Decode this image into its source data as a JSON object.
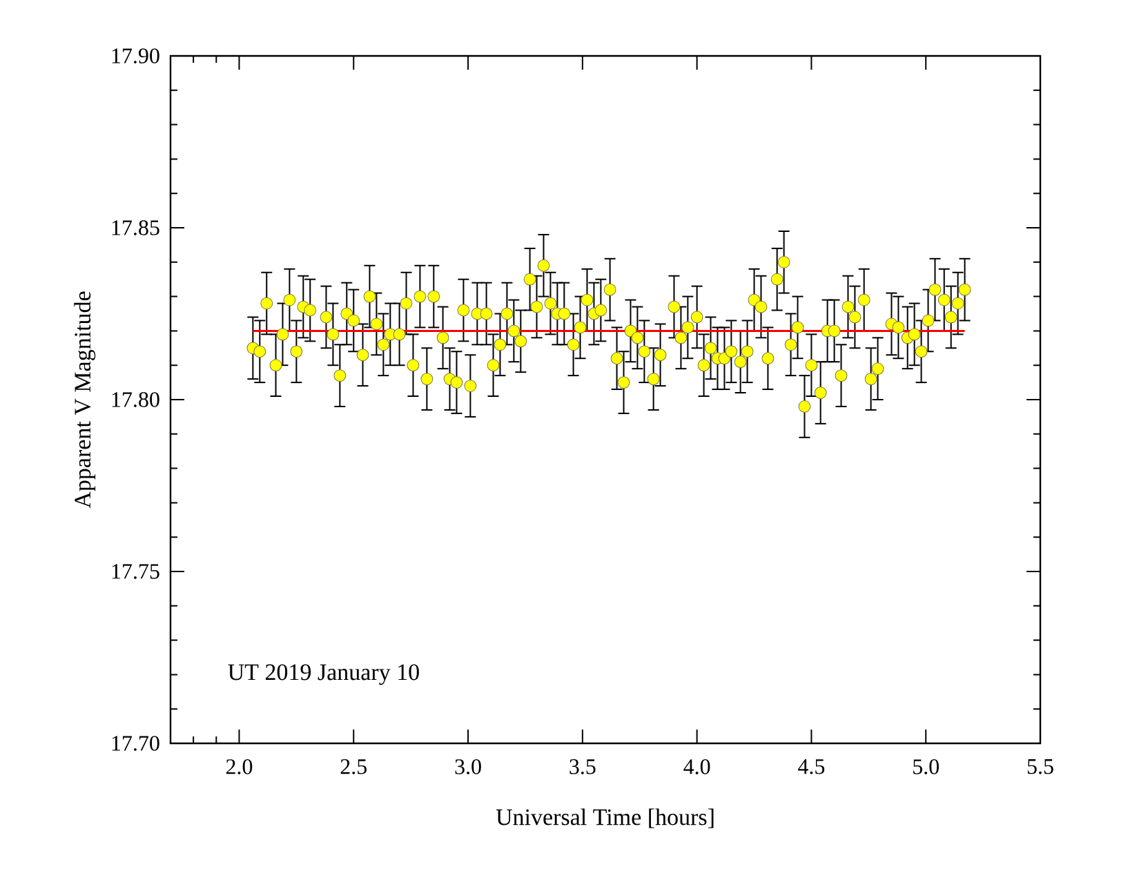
{
  "chart_data": {
    "type": "scatter",
    "xlabel": "Universal Time [hours]",
    "ylabel": "Apparent V Magnitude",
    "xlim": [
      1.7,
      5.5
    ],
    "ylim": [
      17.7,
      17.9
    ],
    "xticks": [
      {
        "value": 1.8,
        "label": null
      },
      {
        "value": 1.9,
        "label": null
      },
      {
        "value": 2.0,
        "label": "2.0"
      },
      {
        "value": 2.5,
        "label": "2.5"
      },
      {
        "value": 3.0,
        "label": "3.0"
      },
      {
        "value": 3.5,
        "label": "3.5"
      },
      {
        "value": 4.0,
        "label": "4.0"
      },
      {
        "value": 4.5,
        "label": "4.5"
      },
      {
        "value": 5.0,
        "label": "5.0"
      },
      {
        "value": 5.5,
        "label": "5.5"
      }
    ],
    "yticks": [
      {
        "value": 17.7,
        "label": "17.70"
      },
      {
        "value": 17.75,
        "label": "17.75"
      },
      {
        "value": 17.8,
        "label": "17.80"
      },
      {
        "value": 17.85,
        "label": "17.85"
      },
      {
        "value": 17.9,
        "label": "17.90"
      }
    ],
    "annotations": [
      "UT 2019 January 10"
    ],
    "series": [
      {
        "marker": "circle",
        "color": "#ffff00",
        "x": [
          2.06,
          2.09,
          2.12,
          2.16,
          2.19,
          2.22,
          2.25,
          2.28,
          2.31,
          2.38,
          2.41,
          2.44,
          2.47,
          2.5,
          2.54,
          2.57,
          2.6,
          2.63,
          2.66,
          2.7,
          2.73,
          2.76,
          2.79,
          2.82,
          2.85,
          2.89,
          2.92,
          2.95,
          2.98,
          3.01,
          3.04,
          3.08,
          3.11,
          3.14,
          3.17,
          3.2,
          3.23,
          3.27,
          3.3,
          3.33,
          3.36,
          3.39,
          3.42,
          3.46,
          3.49,
          3.52,
          3.55,
          3.58,
          3.62,
          3.65,
          3.68,
          3.71,
          3.74,
          3.77,
          3.81,
          3.84,
          3.9,
          3.93,
          3.96,
          4.0,
          4.03,
          4.06,
          4.09,
          4.12,
          4.15,
          4.19,
          4.22,
          4.25,
          4.28,
          4.31,
          4.35,
          4.38,
          4.41,
          4.44,
          4.47,
          4.5,
          4.54,
          4.57,
          4.6,
          4.63,
          4.66,
          4.69,
          4.73,
          4.76,
          4.79,
          4.85,
          4.88,
          4.92,
          4.95,
          4.98,
          5.01,
          5.04,
          5.08,
          5.11,
          5.14,
          5.17
        ],
        "values": [
          17.815,
          17.814,
          17.828,
          17.81,
          17.819,
          17.829,
          17.814,
          17.827,
          17.826,
          17.824,
          17.819,
          17.807,
          17.825,
          17.823,
          17.813,
          17.83,
          17.822,
          17.816,
          17.819,
          17.819,
          17.828,
          17.81,
          17.83,
          17.806,
          17.83,
          17.818,
          17.806,
          17.805,
          17.826,
          17.804,
          17.825,
          17.825,
          17.81,
          17.816,
          17.825,
          17.82,
          17.817,
          17.835,
          17.827,
          17.839,
          17.828,
          17.825,
          17.825,
          17.816,
          17.821,
          17.829,
          17.825,
          17.826,
          17.832,
          17.812,
          17.805,
          17.82,
          17.818,
          17.814,
          17.806,
          17.813,
          17.827,
          17.818,
          17.821,
          17.824,
          17.81,
          17.815,
          17.812,
          17.812,
          17.814,
          17.811,
          17.814,
          17.829,
          17.827,
          17.812,
          17.835,
          17.84,
          17.816,
          17.821,
          17.798,
          17.81,
          17.802,
          17.82,
          17.82,
          17.807,
          17.827,
          17.824,
          17.829,
          17.806,
          17.809,
          17.822,
          17.821,
          17.818,
          17.819,
          17.814,
          17.823,
          17.832,
          17.829,
          17.824,
          17.828,
          17.832
        ],
        "errors": [
          0.009,
          0.009,
          0.009,
          0.009,
          0.009,
          0.009,
          0.009,
          0.009,
          0.009,
          0.009,
          0.009,
          0.009,
          0.009,
          0.009,
          0.009,
          0.009,
          0.009,
          0.009,
          0.009,
          0.009,
          0.009,
          0.009,
          0.009,
          0.009,
          0.009,
          0.009,
          0.009,
          0.009,
          0.009,
          0.009,
          0.009,
          0.009,
          0.009,
          0.009,
          0.009,
          0.009,
          0.009,
          0.009,
          0.009,
          0.009,
          0.009,
          0.009,
          0.009,
          0.009,
          0.009,
          0.009,
          0.009,
          0.009,
          0.009,
          0.009,
          0.009,
          0.009,
          0.009,
          0.009,
          0.009,
          0.009,
          0.009,
          0.009,
          0.009,
          0.009,
          0.009,
          0.009,
          0.009,
          0.009,
          0.009,
          0.009,
          0.009,
          0.009,
          0.009,
          0.009,
          0.009,
          0.009,
          0.009,
          0.009,
          0.009,
          0.009,
          0.009,
          0.009,
          0.009,
          0.009,
          0.009,
          0.009,
          0.009,
          0.009,
          0.009,
          0.009,
          0.009,
          0.009,
          0.009,
          0.009,
          0.009,
          0.009,
          0.009,
          0.009,
          0.009,
          0.009
        ]
      },
      {
        "type": "line",
        "marker": "none",
        "color": "#ff0000",
        "x": [
          2.06,
          5.17
        ],
        "values": [
          17.82,
          17.82
        ]
      }
    ]
  }
}
